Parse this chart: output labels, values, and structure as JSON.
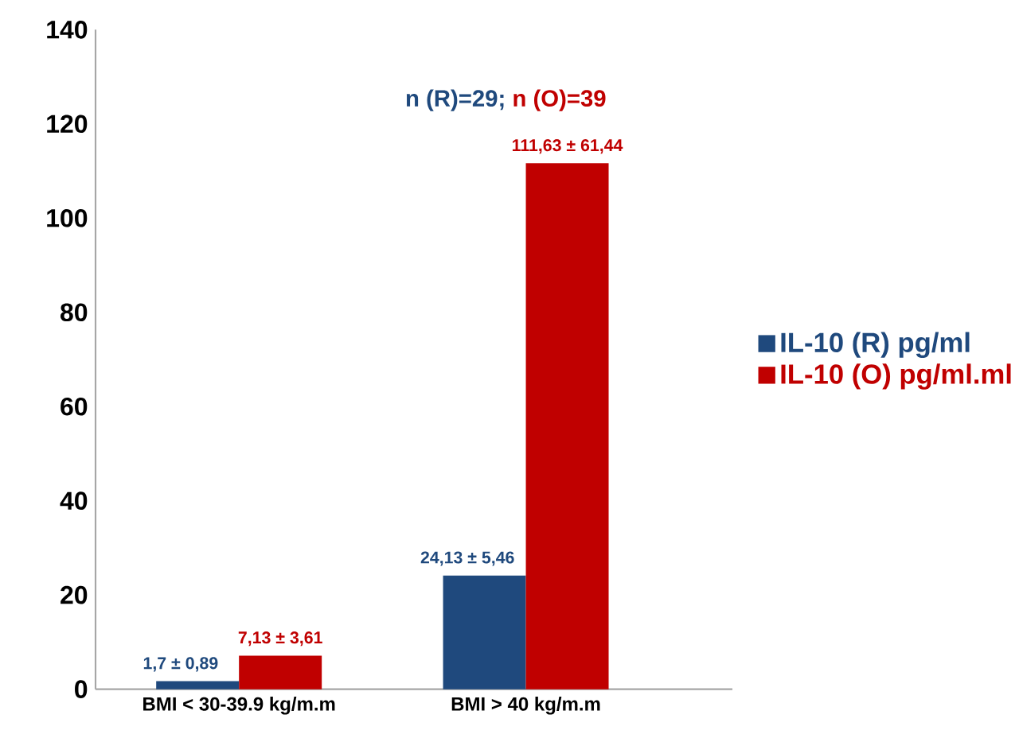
{
  "chart_data": {
    "type": "bar",
    "categories": [
      "BMI < 30-39.9 kg/m.m",
      "BMI > 40 kg/m.m"
    ],
    "series": [
      {
        "name": "IL-10 (R) pg/ml",
        "color": "#1f497d",
        "values": [
          1.7,
          24.13
        ],
        "value_labels": [
          "1,7 ± 0,89",
          "24,13 ± 5,46"
        ]
      },
      {
        "name": "IL-10 (O) pg/ml.ml",
        "color": "#c00000",
        "values": [
          7.13,
          111.63
        ],
        "value_labels": [
          "7,13 ± 3,61",
          "111,63 ± 61,44"
        ]
      }
    ],
    "annotations": [
      "n (R)=29;",
      "n (O)=39"
    ],
    "ylim": [
      0,
      140
    ],
    "yticks": [
      0,
      20,
      40,
      60,
      80,
      100,
      120,
      140
    ],
    "grid": false,
    "legend": "right"
  }
}
